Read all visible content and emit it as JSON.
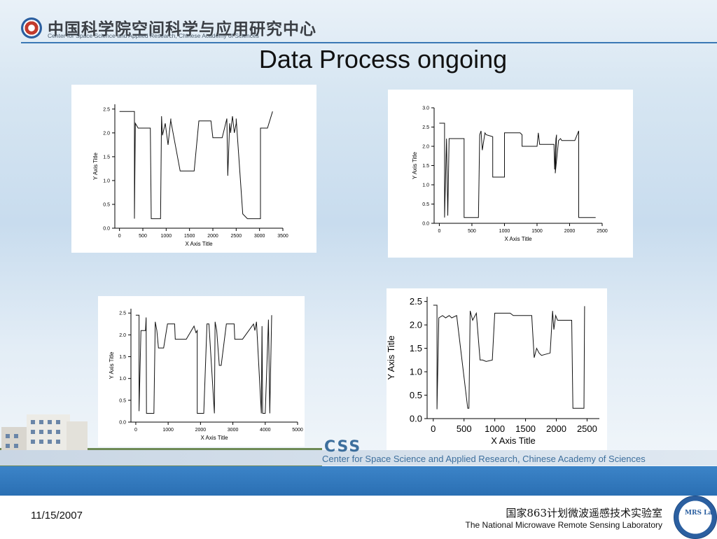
{
  "header": {
    "org_cn": "中国科学院空间科学与应用研究中心",
    "org_en": "Center for Space Science and Applied Research, Chinese Academy of Sciences"
  },
  "slide": {
    "title": "Data Process ongoing"
  },
  "footer": {
    "banner_logo": "CSS",
    "banner_text": "Center for Space Science and Applied Research, Chinese Academy of Sciences",
    "date": "11/15/2007",
    "lab_cn": "国家863计划微波遥感技术实验室",
    "lab_en": "The National Microwave Remote Sensing Laboratory",
    "lab_logo_text": "MRS Lab"
  },
  "colors": {
    "accent": "#2a6fb3",
    "header_line": "#3a78b5",
    "trace": "#111111"
  },
  "chart_data": [
    {
      "type": "line",
      "xlabel": "X Axis Title",
      "ylabel": "Y Axis Title",
      "xlim": [
        -100,
        3500
      ],
      "ylim": [
        0,
        2.6
      ],
      "xticks": [
        0,
        500,
        1000,
        1500,
        2000,
        2500,
        3000,
        3500
      ],
      "yticks": [
        0.0,
        0.5,
        1.0,
        1.5,
        2.0,
        2.5
      ],
      "series": [
        {
          "x": [
            0,
            320,
            320,
            340,
            400,
            660,
            680,
            680,
            880,
            900,
            920,
            980,
            1040,
            1100,
            1100,
            1300,
            1300,
            1340,
            1450,
            1550,
            1600,
            1600,
            1700,
            1720,
            1800,
            1900,
            1960,
            2000,
            2020,
            2080,
            2180,
            2200,
            2250,
            2300,
            2320,
            2360,
            2380,
            2420,
            2460,
            2500,
            2500,
            2640,
            2740,
            2740,
            2880,
            3000,
            3020,
            3020,
            3060,
            3120,
            3170,
            3280
          ],
          "y": [
            2.45,
            2.45,
            0.2,
            2.2,
            2.1,
            2.1,
            0.2,
            0.2,
            0.2,
            2.35,
            1.95,
            2.2,
            1.75,
            2.3,
            2.25,
            1.2,
            1.2,
            1.2,
            1.2,
            1.2,
            1.2,
            1.2,
            2.25,
            2.25,
            2.25,
            2.25,
            2.25,
            1.9,
            1.9,
            1.9,
            1.9,
            1.9,
            2.1,
            2.3,
            1.1,
            2.2,
            2.0,
            2.35,
            2.0,
            2.2,
            2.3,
            0.3,
            0.2,
            0.2,
            0.2,
            0.2,
            0.2,
            2.1,
            2.1,
            2.1,
            2.1,
            2.45
          ]
        }
      ]
    },
    {
      "type": "line",
      "xlabel": "X Axis Title",
      "ylabel": "Y Axis Title",
      "xlim": [
        -80,
        2500
      ],
      "ylim": [
        0,
        3.0
      ],
      "xticks": [
        0,
        500,
        1000,
        1500,
        2000,
        2500
      ],
      "yticks": [
        0.0,
        0.5,
        1.0,
        1.5,
        2.0,
        2.5,
        3.0
      ],
      "series": [
        {
          "x": [
            0,
            80,
            80,
            110,
            130,
            150,
            170,
            330,
            380,
            380,
            560,
            600,
            620,
            640,
            660,
            700,
            720,
            820,
            820,
            960,
            1000,
            1000,
            1240,
            1270,
            1270,
            1500,
            1520,
            1540,
            1760,
            1770,
            1790,
            1800,
            1780,
            1830,
            1860,
            1880,
            1880,
            2080,
            2140,
            2140,
            2400
          ],
          "y": [
            2.6,
            2.6,
            0.15,
            2.2,
            0.2,
            2.2,
            2.2,
            2.2,
            2.2,
            0.15,
            0.15,
            0.15,
            2.3,
            2.4,
            1.9,
            2.35,
            2.3,
            2.25,
            1.2,
            1.2,
            1.2,
            2.35,
            2.35,
            2.3,
            2.0,
            2.0,
            2.35,
            2.05,
            2.05,
            1.4,
            2.2,
            2.3,
            1.3,
            2.15,
            2.2,
            2.15,
            2.15,
            2.15,
            2.4,
            0.15,
            0.15
          ]
        }
      ]
    },
    {
      "type": "line",
      "xlabel": "X Axis Title",
      "ylabel": "Y Axis Title",
      "xlim": [
        -150,
        5000
      ],
      "ylim": [
        0,
        2.6
      ],
      "xticks": [
        0,
        1000,
        2000,
        3000,
        4000,
        5000
      ],
      "yticks": [
        0.0,
        0.5,
        1.0,
        1.5,
        2.0,
        2.5
      ],
      "series": [
        {
          "x": [
            0,
            100,
            100,
            160,
            300,
            320,
            330,
            560,
            600,
            650,
            700,
            760,
            860,
            980,
            1140,
            1200,
            1220,
            1500,
            1560,
            1800,
            1860,
            1900,
            1900,
            2100,
            2200,
            2260,
            2430,
            2450,
            2500,
            2580,
            2620,
            2640,
            2800,
            3040,
            3060,
            3300,
            3640,
            3680,
            3730,
            3880,
            3900,
            3920,
            4000,
            4100,
            4140,
            4200
          ],
          "y": [
            2.45,
            2.45,
            0.25,
            2.1,
            2.1,
            2.4,
            0.2,
            0.2,
            2.3,
            2.1,
            1.7,
            1.7,
            1.7,
            2.25,
            2.25,
            2.25,
            1.9,
            1.9,
            1.9,
            2.2,
            2.05,
            2.1,
            0.2,
            0.2,
            2.25,
            2.25,
            0.2,
            2.3,
            2.1,
            1.3,
            1.3,
            1.3,
            2.25,
            2.25,
            1.9,
            1.9,
            2.25,
            2.1,
            2.3,
            0.2,
            2.2,
            0.2,
            0.2,
            2.35,
            0.2,
            2.45
          ]
        }
      ]
    },
    {
      "type": "line",
      "xlabel": "X Axis Title",
      "ylabel": "Y Axis Title",
      "xlim": [
        -100,
        2700
      ],
      "ylim": [
        0,
        2.6
      ],
      "xticks": [
        0,
        500,
        1000,
        1500,
        2000,
        2500
      ],
      "yticks": [
        0.0,
        0.5,
        1.0,
        1.5,
        2.0,
        2.5
      ],
      "series": [
        {
          "x": [
            0,
            60,
            60,
            90,
            150,
            200,
            260,
            300,
            380,
            560,
            580,
            600,
            640,
            700,
            760,
            800,
            860,
            960,
            1000,
            1250,
            1300,
            1450,
            1500,
            1600,
            1640,
            1680,
            1720,
            1760,
            1900,
            1940,
            1960,
            1990,
            2020,
            2050,
            2100,
            2250,
            2270,
            2290,
            2450,
            2460
          ],
          "y": [
            2.42,
            2.42,
            0.2,
            2.15,
            2.2,
            2.15,
            2.2,
            2.15,
            2.2,
            0.22,
            0.22,
            2.3,
            2.1,
            2.25,
            1.25,
            1.25,
            1.22,
            1.25,
            2.25,
            2.25,
            2.2,
            2.2,
            2.2,
            2.2,
            1.3,
            1.5,
            1.4,
            1.35,
            1.4,
            2.3,
            1.9,
            2.2,
            2.1,
            2.1,
            2.1,
            2.1,
            0.22,
            0.22,
            0.22,
            2.4
          ]
        }
      ]
    }
  ]
}
